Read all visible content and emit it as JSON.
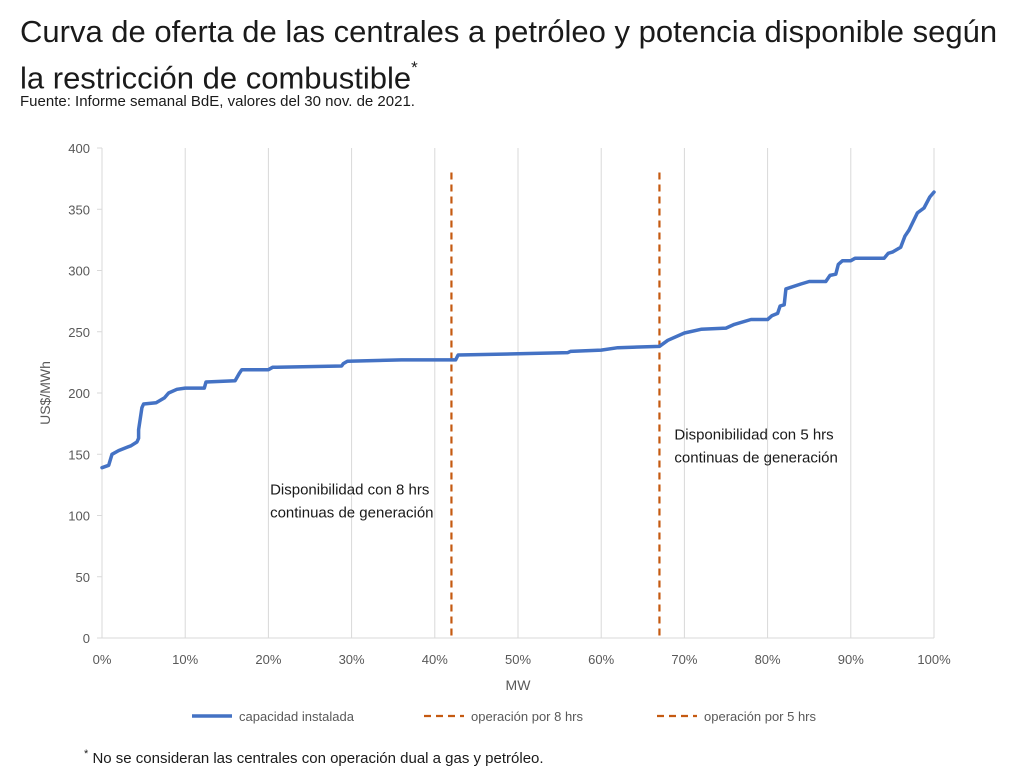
{
  "title": "Curva de oferta de las centrales a petróleo y potencia disponible según la restricción de combustible",
  "title_mark": "*",
  "source": "Fuente: Informe semanal BdE, valores del 30 nov. de 2021.",
  "footnote_mark": "*",
  "footnote": "No se consideran las centrales con operación dual a gas y petróleo.",
  "colors": {
    "series": "#4472C4",
    "vline": "#C55A11",
    "grid": "#d9d9d9",
    "text": "#595959"
  },
  "chart_data": {
    "type": "line",
    "xlabel": "MW",
    "ylabel": "US$/MWh",
    "xlim": [
      0,
      100
    ],
    "ylim": [
      0,
      400
    ],
    "x_ticks": [
      0,
      10,
      20,
      30,
      40,
      50,
      60,
      70,
      80,
      90,
      100
    ],
    "x_tick_labels": [
      "0%",
      "10%",
      "20%",
      "30%",
      "40%",
      "50%",
      "60%",
      "70%",
      "80%",
      "90%",
      "100%"
    ],
    "y_ticks": [
      0,
      50,
      100,
      150,
      200,
      250,
      300,
      350,
      400
    ],
    "y_tick_labels": [
      "0",
      "50",
      "100",
      "150",
      "200",
      "250",
      "300",
      "350",
      "400"
    ],
    "grid": "vertical",
    "series": [
      {
        "name": "capacidad instalada",
        "points": [
          [
            0,
            139
          ],
          [
            0.8,
            141
          ],
          [
            1.2,
            150
          ],
          [
            2,
            153
          ],
          [
            3.5,
            157
          ],
          [
            4.2,
            160
          ],
          [
            4.4,
            163
          ],
          [
            4.4,
            170
          ],
          [
            4.8,
            188
          ],
          [
            5,
            191
          ],
          [
            6.5,
            192
          ],
          [
            7.5,
            196
          ],
          [
            8,
            200
          ],
          [
            9,
            203
          ],
          [
            10,
            204
          ],
          [
            12.3,
            204
          ],
          [
            12.5,
            209
          ],
          [
            16,
            210
          ],
          [
            16.5,
            216
          ],
          [
            16.8,
            219
          ],
          [
            20,
            219
          ],
          [
            20.5,
            221
          ],
          [
            21,
            221
          ],
          [
            28.8,
            222
          ],
          [
            29,
            224
          ],
          [
            29.5,
            226
          ],
          [
            36,
            227
          ],
          [
            42.5,
            227
          ],
          [
            42.8,
            231
          ],
          [
            50,
            232
          ],
          [
            56,
            233
          ],
          [
            56.3,
            234
          ],
          [
            60,
            235
          ],
          [
            62,
            237
          ],
          [
            67,
            238
          ],
          [
            68,
            243
          ],
          [
            70,
            249
          ],
          [
            72,
            252
          ],
          [
            75,
            253
          ],
          [
            76,
            256
          ],
          [
            78,
            260
          ],
          [
            80,
            260
          ],
          [
            80.5,
            263
          ],
          [
            81.2,
            265
          ],
          [
            81.5,
            271
          ],
          [
            82,
            272
          ],
          [
            82.2,
            285
          ],
          [
            84,
            289
          ],
          [
            85,
            291
          ],
          [
            87,
            291
          ],
          [
            87.5,
            296
          ],
          [
            88.2,
            297
          ],
          [
            88.5,
            305
          ],
          [
            89,
            308
          ],
          [
            90,
            308
          ],
          [
            90.5,
            310
          ],
          [
            94,
            310
          ],
          [
            94.5,
            314
          ],
          [
            95,
            315
          ],
          [
            96,
            319
          ],
          [
            96.5,
            328
          ],
          [
            97,
            333
          ],
          [
            98,
            347
          ],
          [
            98.8,
            351
          ],
          [
            99.5,
            360
          ],
          [
            100,
            364
          ]
        ]
      }
    ],
    "vlines": [
      {
        "name": "operación por 8 hrs",
        "x": 42,
        "y_top": 380
      },
      {
        "name": "operación por 5 hrs",
        "x": 67,
        "y_top": 380
      }
    ],
    "annotations": [
      {
        "lines": [
          "Disponibilidad con 8 hrs",
          "continuas de generación"
        ],
        "x": 20.2,
        "y": 117
      },
      {
        "lines": [
          "Disponibilidad con 5 hrs",
          "continuas de generación"
        ],
        "x": 68.8,
        "y": 162
      }
    ],
    "legend": {
      "position": "bottom",
      "entries": [
        {
          "label": "capacidad instalada",
          "style": "solid"
        },
        {
          "label": "operación por 8 hrs",
          "style": "dashed"
        },
        {
          "label": "operación por 5 hrs",
          "style": "dashed"
        }
      ]
    }
  }
}
